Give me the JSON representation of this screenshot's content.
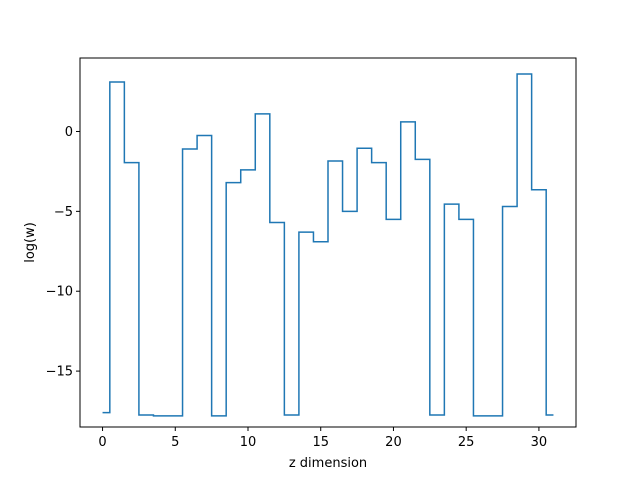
{
  "chart_data": {
    "type": "line",
    "drawstyle": "steps-mid",
    "title": "",
    "xlabel": "z dimension",
    "ylabel": "log(w)",
    "xlim": [
      -1.55,
      32.55
    ],
    "ylim": [
      -18.5,
      4.6
    ],
    "xticks": [
      0,
      5,
      10,
      15,
      20,
      25,
      30
    ],
    "xtick_labels": [
      "0",
      "5",
      "10",
      "15",
      "20",
      "25",
      "30"
    ],
    "yticks": [
      -15,
      -10,
      -5,
      0
    ],
    "ytick_labels": [
      "−15",
      "−10",
      "−5",
      "0"
    ],
    "grid": false,
    "series": [
      {
        "color": "#1f77b4",
        "x": [
          0,
          1,
          2,
          3,
          4,
          5,
          6,
          7,
          8,
          9,
          10,
          11,
          12,
          13,
          14,
          15,
          16,
          17,
          18,
          19,
          20,
          21,
          22,
          23,
          24,
          25,
          26,
          27,
          28,
          29,
          30,
          31
        ],
        "y": [
          -17.6,
          3.1,
          -1.95,
          -17.75,
          -17.8,
          -17.8,
          -1.1,
          -0.25,
          -17.8,
          -3.2,
          -2.4,
          1.1,
          -5.7,
          -17.75,
          -6.3,
          -6.9,
          -1.85,
          -5.0,
          -1.05,
          -1.95,
          -5.5,
          0.6,
          -1.75,
          -17.75,
          -4.55,
          -5.5,
          -17.8,
          -17.8,
          -4.7,
          3.6,
          -3.65,
          -17.75
        ]
      }
    ]
  }
}
